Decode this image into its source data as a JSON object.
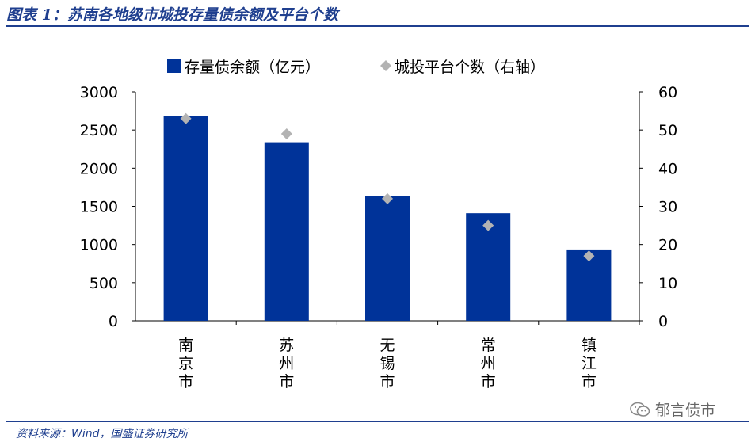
{
  "figure": {
    "title": "图表 1：苏南各地级市城投存量债余额及平台个数",
    "source": "资料来源：Wind，国盛证券研究所",
    "watermark": "郁言债市"
  },
  "chart_data": {
    "type": "bar",
    "categories": [
      "南京市",
      "苏州市",
      "无锡市",
      "常州市",
      "镇江市"
    ],
    "series": [
      {
        "name": "存量债余额（亿元）",
        "kind": "bar",
        "axis": "left",
        "color": "#003399",
        "values": [
          2680,
          2340,
          1630,
          1410,
          935
        ]
      },
      {
        "name": "城投平台个数（右轴）",
        "kind": "diamond",
        "axis": "right",
        "color": "#b3b3b3",
        "values": [
          53,
          49,
          32,
          25,
          17
        ]
      }
    ],
    "y_left": {
      "min": 0,
      "max": 3000,
      "ticks": [
        0,
        500,
        1000,
        1500,
        2000,
        2500,
        3000
      ]
    },
    "y_right": {
      "min": 0,
      "max": 60,
      "ticks": [
        0,
        10,
        20,
        30,
        40,
        50,
        60
      ]
    },
    "grid": false,
    "legend_position": "top"
  }
}
